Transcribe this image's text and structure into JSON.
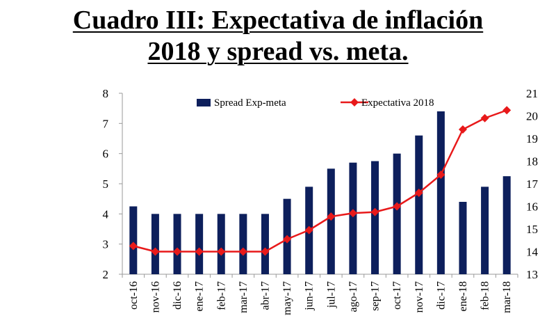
{
  "header": {
    "title_line1": "Cuadro III: Expectativa de inflación",
    "title_line2": "2018 y spread vs. meta."
  },
  "chart_data": {
    "type": "bar+line",
    "categories": [
      "oct-16",
      "nov-16",
      "dic-16",
      "ene-17",
      "feb-17",
      "mar-17",
      "abr-17",
      "may-17",
      "jun-17",
      "jul-17",
      "ago-17",
      "sep-17",
      "oct-17",
      "nov-17",
      "dic-17",
      "ene-18",
      "feb-18",
      "mar-18"
    ],
    "series": [
      {
        "name": "Spread Exp-meta",
        "type": "bar",
        "axis": "left",
        "color": "#0d1f5c",
        "values": [
          4.25,
          4.0,
          4.0,
          4.0,
          4.0,
          4.0,
          4.0,
          4.5,
          4.9,
          5.5,
          5.7,
          5.75,
          6.0,
          6.6,
          7.4,
          4.4,
          4.9,
          5.25
        ]
      },
      {
        "name": "Expectativa 2018",
        "type": "line",
        "axis": "right",
        "color": "#e8191a",
        "values": [
          14.25,
          14.0,
          14.0,
          14.0,
          14.0,
          14.0,
          14.0,
          14.55,
          14.95,
          15.55,
          15.7,
          15.75,
          16.0,
          16.6,
          17.4,
          19.4,
          19.9,
          20.25
        ]
      }
    ],
    "y_left": {
      "min": 2,
      "max": 8,
      "ticks": [
        "2",
        "3",
        "4",
        "5",
        "6",
        "7",
        "8"
      ]
    },
    "y_right": {
      "min": 13,
      "max": 21,
      "ticks": [
        "13",
        "14",
        "15",
        "16",
        "17",
        "18",
        "19",
        "20",
        "21"
      ]
    },
    "legend_position": "top",
    "grid": false
  }
}
